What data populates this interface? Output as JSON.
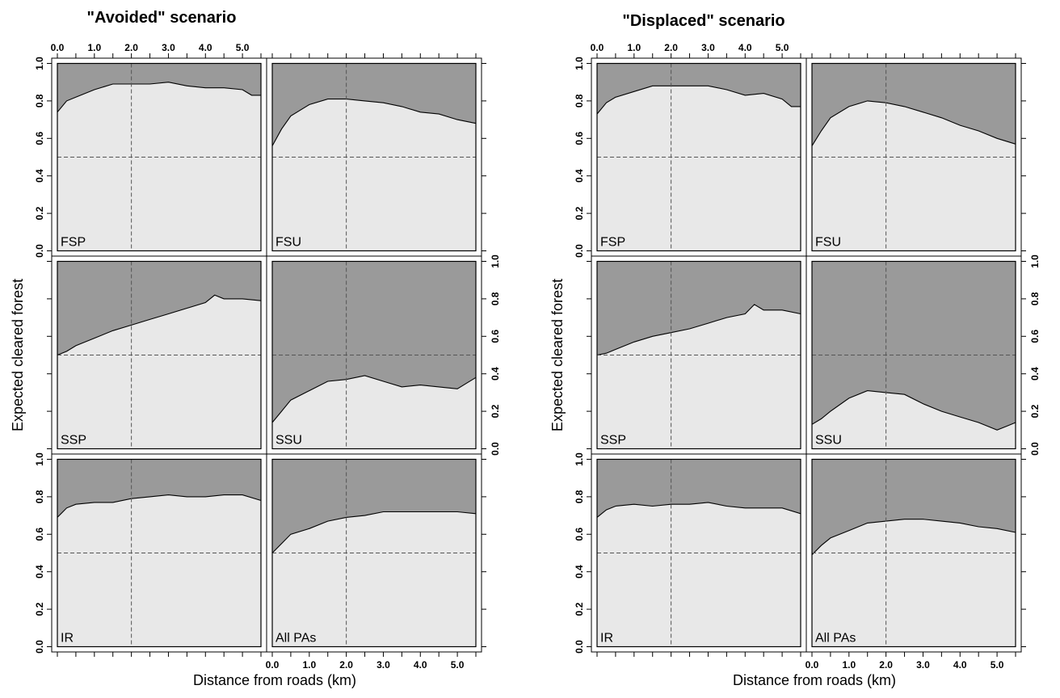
{
  "chart_data": [
    {
      "type": "area",
      "title": "\"Avoided\" scenario",
      "xlabel": "Distance from roads (km)",
      "ylabel": "Expected cleared forest",
      "xlim": [
        0,
        5.5
      ],
      "ylim": [
        0,
        1
      ],
      "x_ticks": [
        "0.0",
        "1.0",
        "2.0",
        "3.0",
        "4.0",
        "5.0"
      ],
      "y_ticks": [
        "0.0",
        "0.2",
        "0.4",
        "0.6",
        "0.8",
        "1.0"
      ],
      "reference_lines": {
        "x": 2.0,
        "y": 0.5
      },
      "grid": false,
      "panels": [
        {
          "label": "FSP",
          "x": [
            0,
            0.25,
            0.5,
            1,
            1.5,
            2,
            2.5,
            3,
            3.5,
            4,
            4.5,
            5,
            5.25,
            5.5
          ],
          "y": [
            0.74,
            0.8,
            0.82,
            0.86,
            0.89,
            0.89,
            0.89,
            0.9,
            0.88,
            0.87,
            0.87,
            0.86,
            0.83,
            0.83
          ]
        },
        {
          "label": "FSU",
          "x": [
            0,
            0.25,
            0.5,
            1,
            1.5,
            2,
            2.5,
            3,
            3.5,
            4,
            4.5,
            5,
            5.5
          ],
          "y": [
            0.56,
            0.65,
            0.72,
            0.78,
            0.81,
            0.81,
            0.8,
            0.79,
            0.77,
            0.74,
            0.73,
            0.7,
            0.68
          ]
        },
        {
          "label": "SSP",
          "x": [
            0,
            0.25,
            0.5,
            1,
            1.5,
            2,
            2.5,
            3,
            3.5,
            4,
            4.25,
            4.5,
            5,
            5.5
          ],
          "y": [
            0.5,
            0.52,
            0.55,
            0.59,
            0.63,
            0.66,
            0.69,
            0.72,
            0.75,
            0.78,
            0.82,
            0.8,
            0.8,
            0.79
          ]
        },
        {
          "label": "SSU",
          "x": [
            0,
            0.25,
            0.5,
            1,
            1.5,
            2,
            2.5,
            3,
            3.5,
            4,
            4.5,
            5,
            5.25,
            5.5
          ],
          "y": [
            0.14,
            0.2,
            0.26,
            0.31,
            0.36,
            0.37,
            0.39,
            0.36,
            0.33,
            0.34,
            0.33,
            0.32,
            0.35,
            0.38
          ]
        },
        {
          "label": "IR",
          "x": [
            0,
            0.25,
            0.5,
            1,
            1.5,
            2,
            2.5,
            3,
            3.5,
            4,
            4.5,
            5,
            5.5
          ],
          "y": [
            0.69,
            0.74,
            0.76,
            0.77,
            0.77,
            0.79,
            0.8,
            0.81,
            0.8,
            0.8,
            0.81,
            0.81,
            0.78
          ]
        },
        {
          "label": "All PAs",
          "x": [
            0,
            0.25,
            0.5,
            1,
            1.5,
            2,
            2.5,
            3,
            3.5,
            4,
            4.5,
            5,
            5.5
          ],
          "y": [
            0.5,
            0.55,
            0.6,
            0.63,
            0.67,
            0.69,
            0.7,
            0.72,
            0.72,
            0.72,
            0.72,
            0.72,
            0.71
          ]
        }
      ]
    },
    {
      "type": "area",
      "title": "\"Displaced\" scenario",
      "xlabel": "Distance from roads (km)",
      "ylabel": "Expected cleared forest",
      "xlim": [
        0,
        5.5
      ],
      "ylim": [
        0,
        1
      ],
      "x_ticks": [
        "0.0",
        "1.0",
        "2.0",
        "3.0",
        "4.0",
        "5.0"
      ],
      "y_ticks": [
        "0.0",
        "0.2",
        "0.4",
        "0.6",
        "0.8",
        "1.0"
      ],
      "reference_lines": {
        "x": 2.0,
        "y": 0.5
      },
      "grid": false,
      "panels": [
        {
          "label": "FSP",
          "x": [
            0,
            0.25,
            0.5,
            1,
            1.5,
            2,
            2.5,
            3,
            3.5,
            4,
            4.5,
            5,
            5.25,
            5.5
          ],
          "y": [
            0.73,
            0.79,
            0.82,
            0.85,
            0.88,
            0.88,
            0.88,
            0.88,
            0.86,
            0.83,
            0.84,
            0.81,
            0.77,
            0.77
          ]
        },
        {
          "label": "FSU",
          "x": [
            0,
            0.25,
            0.5,
            1,
            1.5,
            2,
            2.5,
            3,
            3.5,
            4,
            4.5,
            5,
            5.5
          ],
          "y": [
            0.56,
            0.64,
            0.71,
            0.77,
            0.8,
            0.79,
            0.77,
            0.74,
            0.71,
            0.67,
            0.64,
            0.6,
            0.57
          ]
        },
        {
          "label": "SSP",
          "x": [
            0,
            0.25,
            0.5,
            1,
            1.5,
            2,
            2.5,
            3,
            3.5,
            4,
            4.25,
            4.5,
            5,
            5.5
          ],
          "y": [
            0.5,
            0.51,
            0.53,
            0.57,
            0.6,
            0.62,
            0.64,
            0.67,
            0.7,
            0.72,
            0.77,
            0.74,
            0.74,
            0.72
          ]
        },
        {
          "label": "SSU",
          "x": [
            0,
            0.25,
            0.5,
            1,
            1.5,
            2,
            2.5,
            3,
            3.5,
            4,
            4.5,
            5,
            5.25,
            5.5
          ],
          "y": [
            0.13,
            0.16,
            0.2,
            0.27,
            0.31,
            0.3,
            0.29,
            0.24,
            0.2,
            0.17,
            0.14,
            0.1,
            0.12,
            0.14
          ]
        },
        {
          "label": "IR",
          "x": [
            0,
            0.25,
            0.5,
            1,
            1.5,
            2,
            2.5,
            3,
            3.5,
            4,
            4.5,
            5,
            5.5
          ],
          "y": [
            0.69,
            0.73,
            0.75,
            0.76,
            0.75,
            0.76,
            0.76,
            0.77,
            0.75,
            0.74,
            0.74,
            0.74,
            0.71
          ]
        },
        {
          "label": "All PAs",
          "x": [
            0,
            0.25,
            0.5,
            1,
            1.5,
            2,
            2.5,
            3,
            3.5,
            4,
            4.5,
            5,
            5.5
          ],
          "y": [
            0.49,
            0.54,
            0.58,
            0.62,
            0.66,
            0.67,
            0.68,
            0.68,
            0.67,
            0.66,
            0.64,
            0.63,
            0.61
          ]
        }
      ]
    }
  ],
  "colors": {
    "cleared": "#e8e8e8",
    "remaining": "#9a9a9a",
    "outline": "#000000",
    "reference": "#555555"
  }
}
